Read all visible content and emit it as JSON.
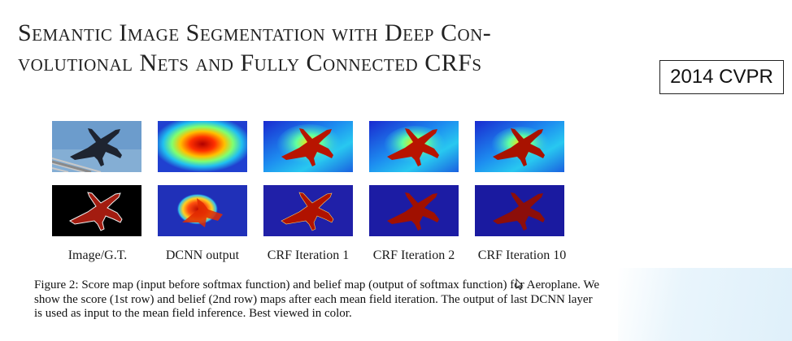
{
  "paper": {
    "title": "Semantic Image Segmentation with Deep Convolutional Nets and Fully Connected CRFs",
    "title_line1": "Semantic Image Segmentation with Deep Con-",
    "title_line2": "volutional Nets and Fully Connected CRFs",
    "venue_badge": "2014 CVPR"
  },
  "figure": {
    "columns": [
      {
        "label": "Image/G.T."
      },
      {
        "label": "DCNN output"
      },
      {
        "label": "CRF Iteration 1"
      },
      {
        "label": "CRF Iteration 2"
      },
      {
        "label": "CRF Iteration 10"
      }
    ],
    "rows": [
      "score map",
      "belief map"
    ],
    "caption": "Figure 2: Score map (input before softmax function) and belief map (output of softmax function) for Aeroplane. We show the score (1st row) and belief (2nd row) maps after each mean field iteration. The output of last DCNN layer is used as input to the mean field inference. Best viewed in color."
  },
  "colors": {
    "heat_low": "#1a1aa8",
    "heat_mid": "#2ec9f0",
    "heat_high": "#b81400",
    "sky": "#5a8fc0",
    "gt_plane": "#a31c10"
  }
}
